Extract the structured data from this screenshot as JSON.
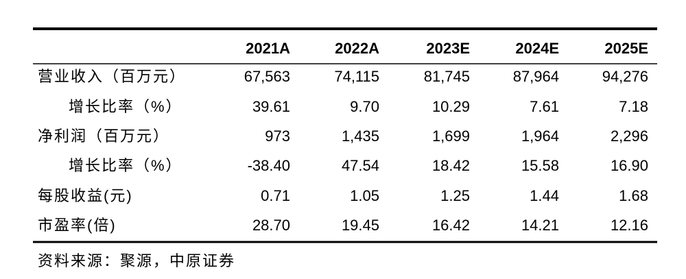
{
  "table": {
    "columns": [
      "2021A",
      "2022A",
      "2023E",
      "2024E",
      "2025E"
    ],
    "rows": [
      {
        "label": "营业收入（百万元）",
        "values": [
          "67,563",
          "74,115",
          "81,745",
          "87,964",
          "94,276"
        ]
      },
      {
        "label": "增长比率（%）",
        "values": [
          "39.61",
          "9.70",
          "10.29",
          "7.61",
          "7.18"
        ]
      },
      {
        "label": "净利润（百万元）",
        "values": [
          "973",
          "1,435",
          "1,699",
          "1,964",
          "2,296"
        ]
      },
      {
        "label": "增长比率（%）",
        "values": [
          "-38.40",
          "47.54",
          "18.42",
          "15.58",
          "16.90"
        ]
      },
      {
        "label": "每股收益(元)",
        "values": [
          "0.71",
          "1.05",
          "1.25",
          "1.44",
          "1.68"
        ]
      },
      {
        "label": "市盈率(倍)",
        "values": [
          "28.70",
          "19.45",
          "16.42",
          "14.21",
          "12.16"
        ]
      }
    ]
  },
  "source": "资料来源：聚源，中原证券"
}
